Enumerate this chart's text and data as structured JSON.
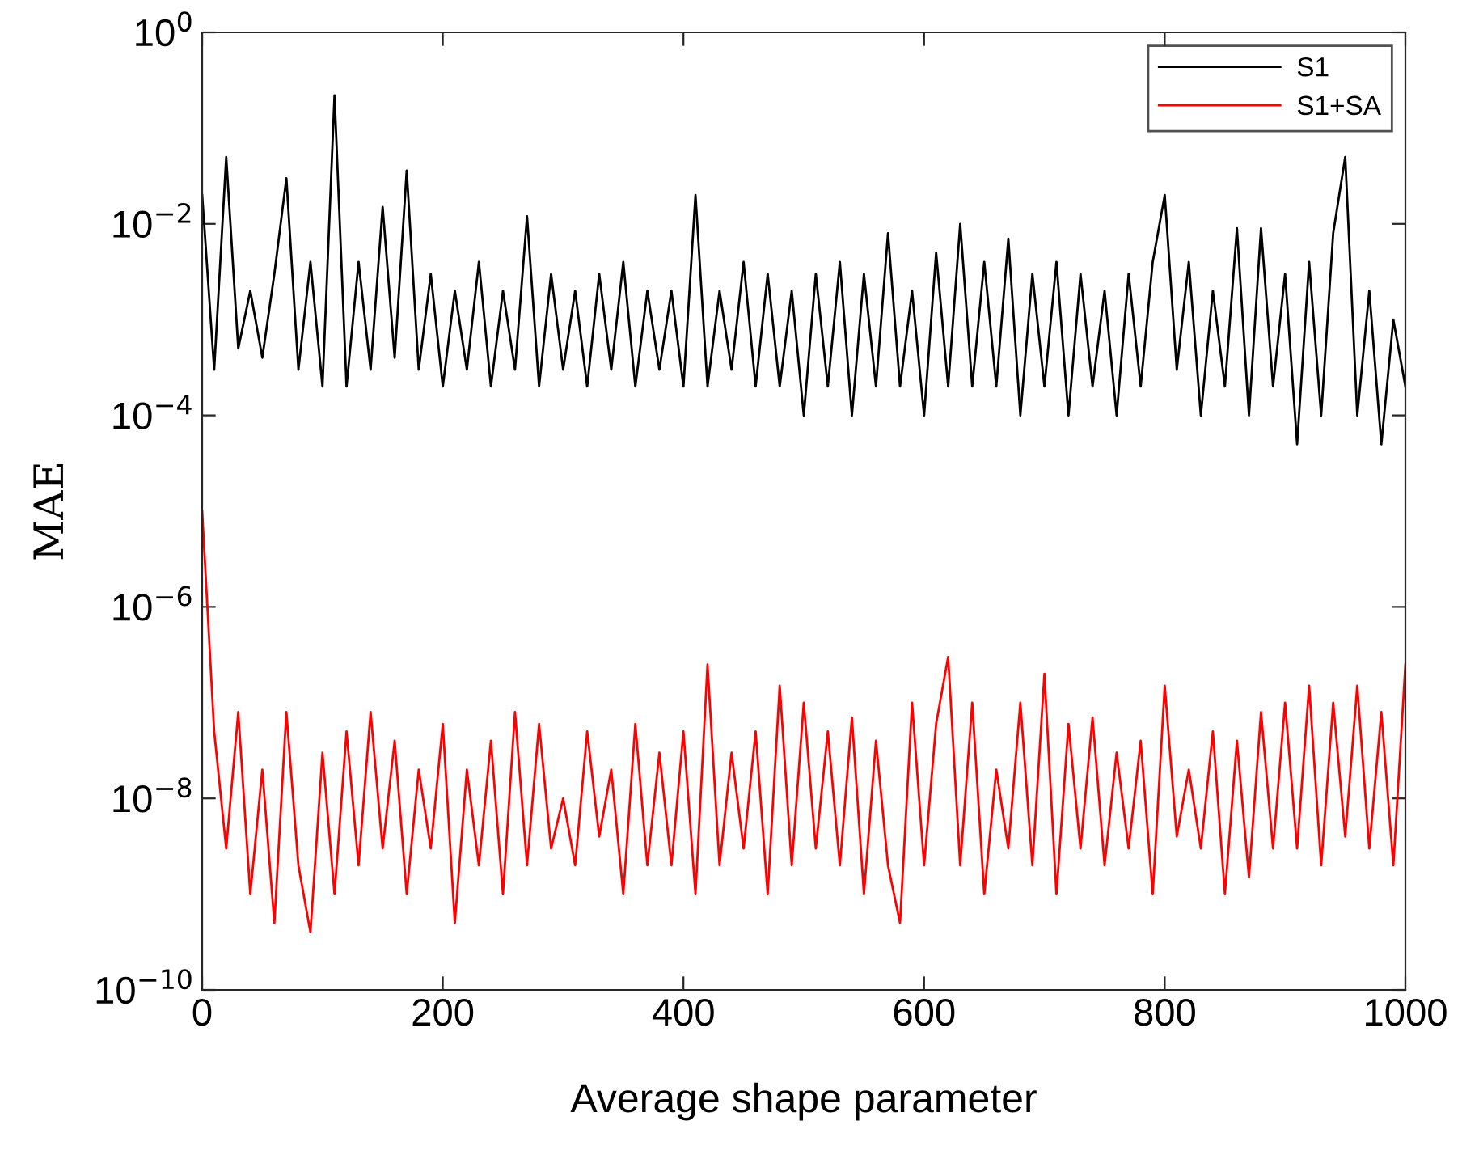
{
  "chart_data": {
    "type": "line",
    "xlabel": "Average shape parameter",
    "ylabel": "MAE",
    "log": "y",
    "legend": "top right",
    "grid": false,
    "marker": "none",
    "line_style": "solid",
    "x": [
      0,
      10,
      20,
      30,
      40,
      50,
      60,
      70,
      80,
      90,
      100,
      110,
      120,
      130,
      140,
      150,
      160,
      170,
      180,
      190,
      200,
      210,
      220,
      230,
      240,
      250,
      260,
      270,
      280,
      290,
      300,
      310,
      320,
      330,
      340,
      350,
      360,
      370,
      380,
      390,
      400,
      410,
      420,
      430,
      440,
      450,
      460,
      470,
      480,
      490,
      500,
      510,
      520,
      530,
      540,
      550,
      560,
      570,
      580,
      590,
      600,
      610,
      620,
      630,
      640,
      650,
      660,
      670,
      680,
      690,
      700,
      710,
      720,
      730,
      740,
      750,
      760,
      770,
      780,
      790,
      800,
      810,
      820,
      830,
      840,
      850,
      860,
      870,
      880,
      890,
      900,
      910,
      920,
      930,
      940,
      950,
      960,
      970,
      980,
      990,
      1000
    ],
    "xlim": [
      0,
      1000
    ],
    "xticks": [
      0,
      200,
      400,
      600,
      800,
      1000
    ],
    "ylim": [
      1e-10,
      1
    ],
    "yticks": [
      {
        "value": 1e-10,
        "label": "10$^{−10}$"
      },
      {
        "value": 1e-08,
        "label": "10$^{−8}$"
      },
      {
        "value": 1e-06,
        "label": "10$^{−6}$"
      },
      {
        "value": 0.0001,
        "label": "10$^{−4}$"
      },
      {
        "value": 0.01,
        "label": "10$^{−2}$"
      },
      {
        "value": 1,
        "label": "10$^{0}$"
      }
    ],
    "series": [
      {
        "name": "S1",
        "color": "#000000",
        "values": [
          0.02,
          0.0003,
          0.05,
          0.0005,
          0.002,
          0.0004,
          0.003,
          0.03,
          0.0003,
          0.004,
          0.0002,
          0.22,
          0.0002,
          0.004,
          0.0003,
          0.015,
          0.0004,
          0.036,
          0.0003,
          0.003,
          0.0002,
          0.002,
          0.0003,
          0.004,
          0.0002,
          0.002,
          0.0003,
          0.012,
          0.0002,
          0.003,
          0.0003,
          0.002,
          0.0002,
          0.003,
          0.0003,
          0.004,
          0.0002,
          0.002,
          0.0003,
          0.002,
          0.0002,
          0.02,
          0.0002,
          0.002,
          0.0003,
          0.004,
          0.0002,
          0.003,
          0.0002,
          0.002,
          0.0001,
          0.003,
          0.0002,
          0.004,
          0.0001,
          0.003,
          0.0002,
          0.008,
          0.0002,
          0.002,
          0.0001,
          0.005,
          0.0002,
          0.01,
          0.0002,
          0.004,
          0.0002,
          0.007,
          0.0001,
          0.003,
          0.0002,
          0.004,
          0.0001,
          0.003,
          0.0002,
          0.002,
          0.0001,
          0.003,
          0.0002,
          0.004,
          0.02,
          0.0003,
          0.004,
          0.0001,
          0.002,
          0.0002,
          0.009,
          0.0001,
          0.009,
          0.0002,
          0.003,
          5e-05,
          0.004,
          0.0001,
          0.008,
          0.05,
          0.0001,
          0.002,
          5e-05,
          0.001,
          0.0002
        ]
      },
      {
        "name": "S1+SA",
        "color": "#ff0000",
        "values": [
          1e-05,
          5e-08,
          3e-09,
          8e-08,
          1e-09,
          2e-08,
          5e-10,
          8e-08,
          2e-09,
          4e-10,
          3e-08,
          1e-09,
          5e-08,
          2e-09,
          8e-08,
          3e-09,
          4e-08,
          1e-09,
          2e-08,
          3e-09,
          6e-08,
          5e-10,
          2e-08,
          2e-09,
          4e-08,
          1e-09,
          8e-08,
          2e-09,
          6e-08,
          3e-09,
          1e-08,
          2e-09,
          5e-08,
          4e-09,
          2e-08,
          1e-09,
          6e-08,
          2e-09,
          3e-08,
          2e-09,
          5e-08,
          1e-09,
          2.5e-07,
          2e-09,
          3e-08,
          3e-09,
          5e-08,
          1e-09,
          1.5e-07,
          2e-09,
          1e-07,
          3e-09,
          5e-08,
          2e-09,
          7e-08,
          1e-09,
          4e-08,
          2e-09,
          5e-10,
          1e-07,
          2e-09,
          6e-08,
          3e-07,
          2e-09,
          1e-07,
          1e-09,
          2e-08,
          3e-09,
          1e-07,
          2e-09,
          2e-07,
          1e-09,
          6e-08,
          3e-09,
          7e-08,
          2e-09,
          3e-08,
          3e-09,
          4e-08,
          1e-09,
          1.5e-07,
          4e-09,
          2e-08,
          3e-09,
          5e-08,
          1e-09,
          4e-08,
          1.5e-09,
          8e-08,
          3e-09,
          1e-07,
          3e-09,
          1.5e-07,
          2e-09,
          1e-07,
          4e-09,
          1.5e-07,
          3e-09,
          8e-08,
          2e-09,
          2.5e-07
        ]
      }
    ]
  }
}
